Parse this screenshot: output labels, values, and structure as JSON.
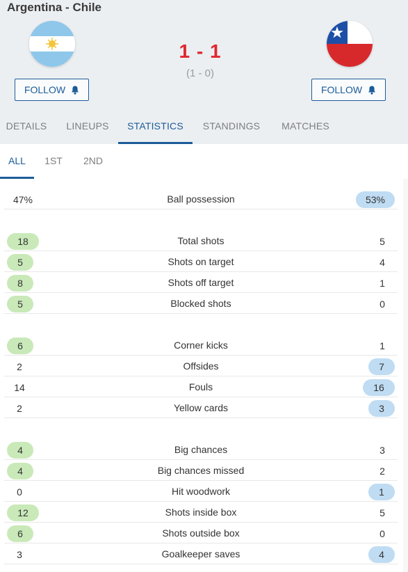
{
  "match": {
    "title": "Argentina - Chile",
    "score": "1 - 1",
    "halftime": "(1 - 0)",
    "home_follow": "FOLLOW",
    "away_follow": "FOLLOW"
  },
  "tabs": [
    "DETAILS",
    "LINEUPS",
    "STATISTICS",
    "STANDINGS",
    "MATCHES"
  ],
  "subtabs": [
    "ALL",
    "1ST",
    "2ND"
  ],
  "colors": {
    "accent": "#1b5c99",
    "score": "#e0282e",
    "home_highlight": "#c9e9b9",
    "away_highlight": "#bfdcf3"
  },
  "stats": [
    {
      "home": "47%",
      "label": "Ball possession",
      "away": "53%",
      "winner": "away"
    },
    {
      "home": "18",
      "label": "Total shots",
      "away": "5",
      "winner": "home"
    },
    {
      "home": "5",
      "label": "Shots on target",
      "away": "4",
      "winner": "home"
    },
    {
      "home": "8",
      "label": "Shots off target",
      "away": "1",
      "winner": "home"
    },
    {
      "home": "5",
      "label": "Blocked shots",
      "away": "0",
      "winner": "home"
    },
    {
      "home": "6",
      "label": "Corner kicks",
      "away": "1",
      "winner": "home"
    },
    {
      "home": "2",
      "label": "Offsides",
      "away": "7",
      "winner": "away"
    },
    {
      "home": "14",
      "label": "Fouls",
      "away": "16",
      "winner": "away"
    },
    {
      "home": "2",
      "label": "Yellow cards",
      "away": "3",
      "winner": "away"
    },
    {
      "home": "4",
      "label": "Big chances",
      "away": "3",
      "winner": "home"
    },
    {
      "home": "4",
      "label": "Big chances missed",
      "away": "2",
      "winner": "home"
    },
    {
      "home": "0",
      "label": "Hit woodwork",
      "away": "1",
      "winner": "away"
    },
    {
      "home": "12",
      "label": "Shots inside box",
      "away": "5",
      "winner": "home"
    },
    {
      "home": "6",
      "label": "Shots outside box",
      "away": "0",
      "winner": "home"
    },
    {
      "home": "3",
      "label": "Goalkeeper saves",
      "away": "4",
      "winner": "away"
    }
  ]
}
